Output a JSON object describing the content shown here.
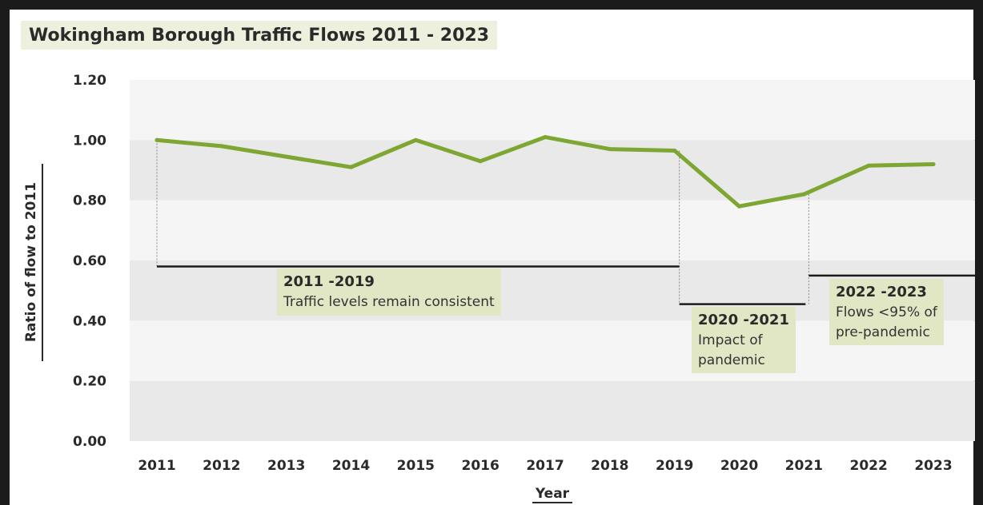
{
  "chart_data": {
    "type": "line",
    "title": "Wokingham Borough Traffic Flows 2011 - 2023",
    "xlabel": "Year",
    "ylabel": "Ratio of flow to 2011",
    "categories": [
      "2011",
      "2012",
      "2013",
      "2014",
      "2015",
      "2016",
      "2017",
      "2018",
      "2019",
      "2020",
      "2021",
      "2022",
      "2023"
    ],
    "series": [
      {
        "values": [
          1.0,
          0.98,
          0.945,
          0.91,
          1.0,
          0.93,
          1.01,
          0.97,
          0.965,
          0.78,
          0.82,
          0.915,
          0.92
        ],
        "color": "#7ea632"
      }
    ],
    "ylim": [
      0,
      1.2
    ],
    "yticks": [
      "0.00",
      "0.20",
      "0.40",
      "0.60",
      "0.80",
      "1.00",
      "1.20"
    ],
    "grid": "alternating horizontal bands",
    "annotations": [
      {
        "head": "2011 -2019",
        "text": [
          "Traffic levels remain consistent"
        ],
        "from": "2011",
        "to": "2019",
        "level": 0.58
      },
      {
        "head": "2020 -2021",
        "text": [
          "Impact of",
          "pandemic"
        ],
        "from": "2019",
        "to": "2021",
        "level": 0.455
      },
      {
        "head": "2022 -2023",
        "text": [
          "Flows <95% of",
          "pre-pandemic"
        ],
        "from": "2021",
        "to": "2023",
        "level": 0.55
      }
    ]
  }
}
